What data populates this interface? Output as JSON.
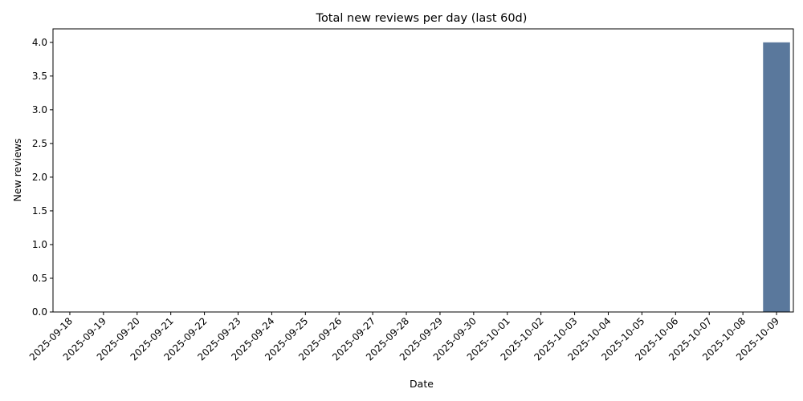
{
  "chart_data": {
    "type": "bar",
    "title": "Total new reviews per day (last 60d)",
    "xlabel": "Date",
    "ylabel": "New reviews",
    "categories": [
      "2025-09-18",
      "2025-09-19",
      "2025-09-20",
      "2025-09-21",
      "2025-09-22",
      "2025-09-23",
      "2025-09-24",
      "2025-09-25",
      "2025-09-26",
      "2025-09-27",
      "2025-09-28",
      "2025-09-29",
      "2025-09-30",
      "2025-10-01",
      "2025-10-02",
      "2025-10-03",
      "2025-10-04",
      "2025-10-05",
      "2025-10-06",
      "2025-10-07",
      "2025-10-08",
      "2025-10-09"
    ],
    "values": [
      0,
      0,
      0,
      0,
      0,
      0,
      0,
      0,
      0,
      0,
      0,
      0,
      0,
      0,
      0,
      0,
      0,
      0,
      0,
      0,
      0,
      4
    ],
    "ylim": [
      0,
      4.2
    ],
    "yticks": [
      "0.0",
      "0.5",
      "1.0",
      "1.5",
      "2.0",
      "2.5",
      "3.0",
      "3.5",
      "4.0"
    ],
    "grid": false,
    "bar_color": "#5a789c"
  }
}
